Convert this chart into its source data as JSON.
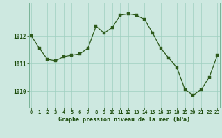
{
  "x": [
    0,
    1,
    2,
    3,
    4,
    5,
    6,
    7,
    8,
    9,
    10,
    11,
    12,
    13,
    14,
    15,
    16,
    17,
    18,
    19,
    20,
    21,
    22,
    23
  ],
  "y": [
    1012.0,
    1011.55,
    1011.15,
    1011.1,
    1011.25,
    1011.3,
    1011.35,
    1011.55,
    1012.35,
    1012.1,
    1012.3,
    1012.75,
    1012.8,
    1012.75,
    1012.6,
    1012.1,
    1011.55,
    1011.2,
    1010.85,
    1010.05,
    1009.85,
    1010.05,
    1010.5,
    1011.3
  ],
  "line_color": "#2d5a1b",
  "marker_color": "#2d5a1b",
  "bg_color": "#cde8e0",
  "grid_color": "#9ecfbf",
  "axis_label_color": "#1a4a0a",
  "tick_label_color": "#1a4a0a",
  "xlabel": "Graphe pression niveau de la mer (hPa)",
  "yticks": [
    1010,
    1011,
    1012
  ],
  "ylim": [
    1009.4,
    1013.2
  ],
  "xlim": [
    -0.3,
    23.3
  ]
}
